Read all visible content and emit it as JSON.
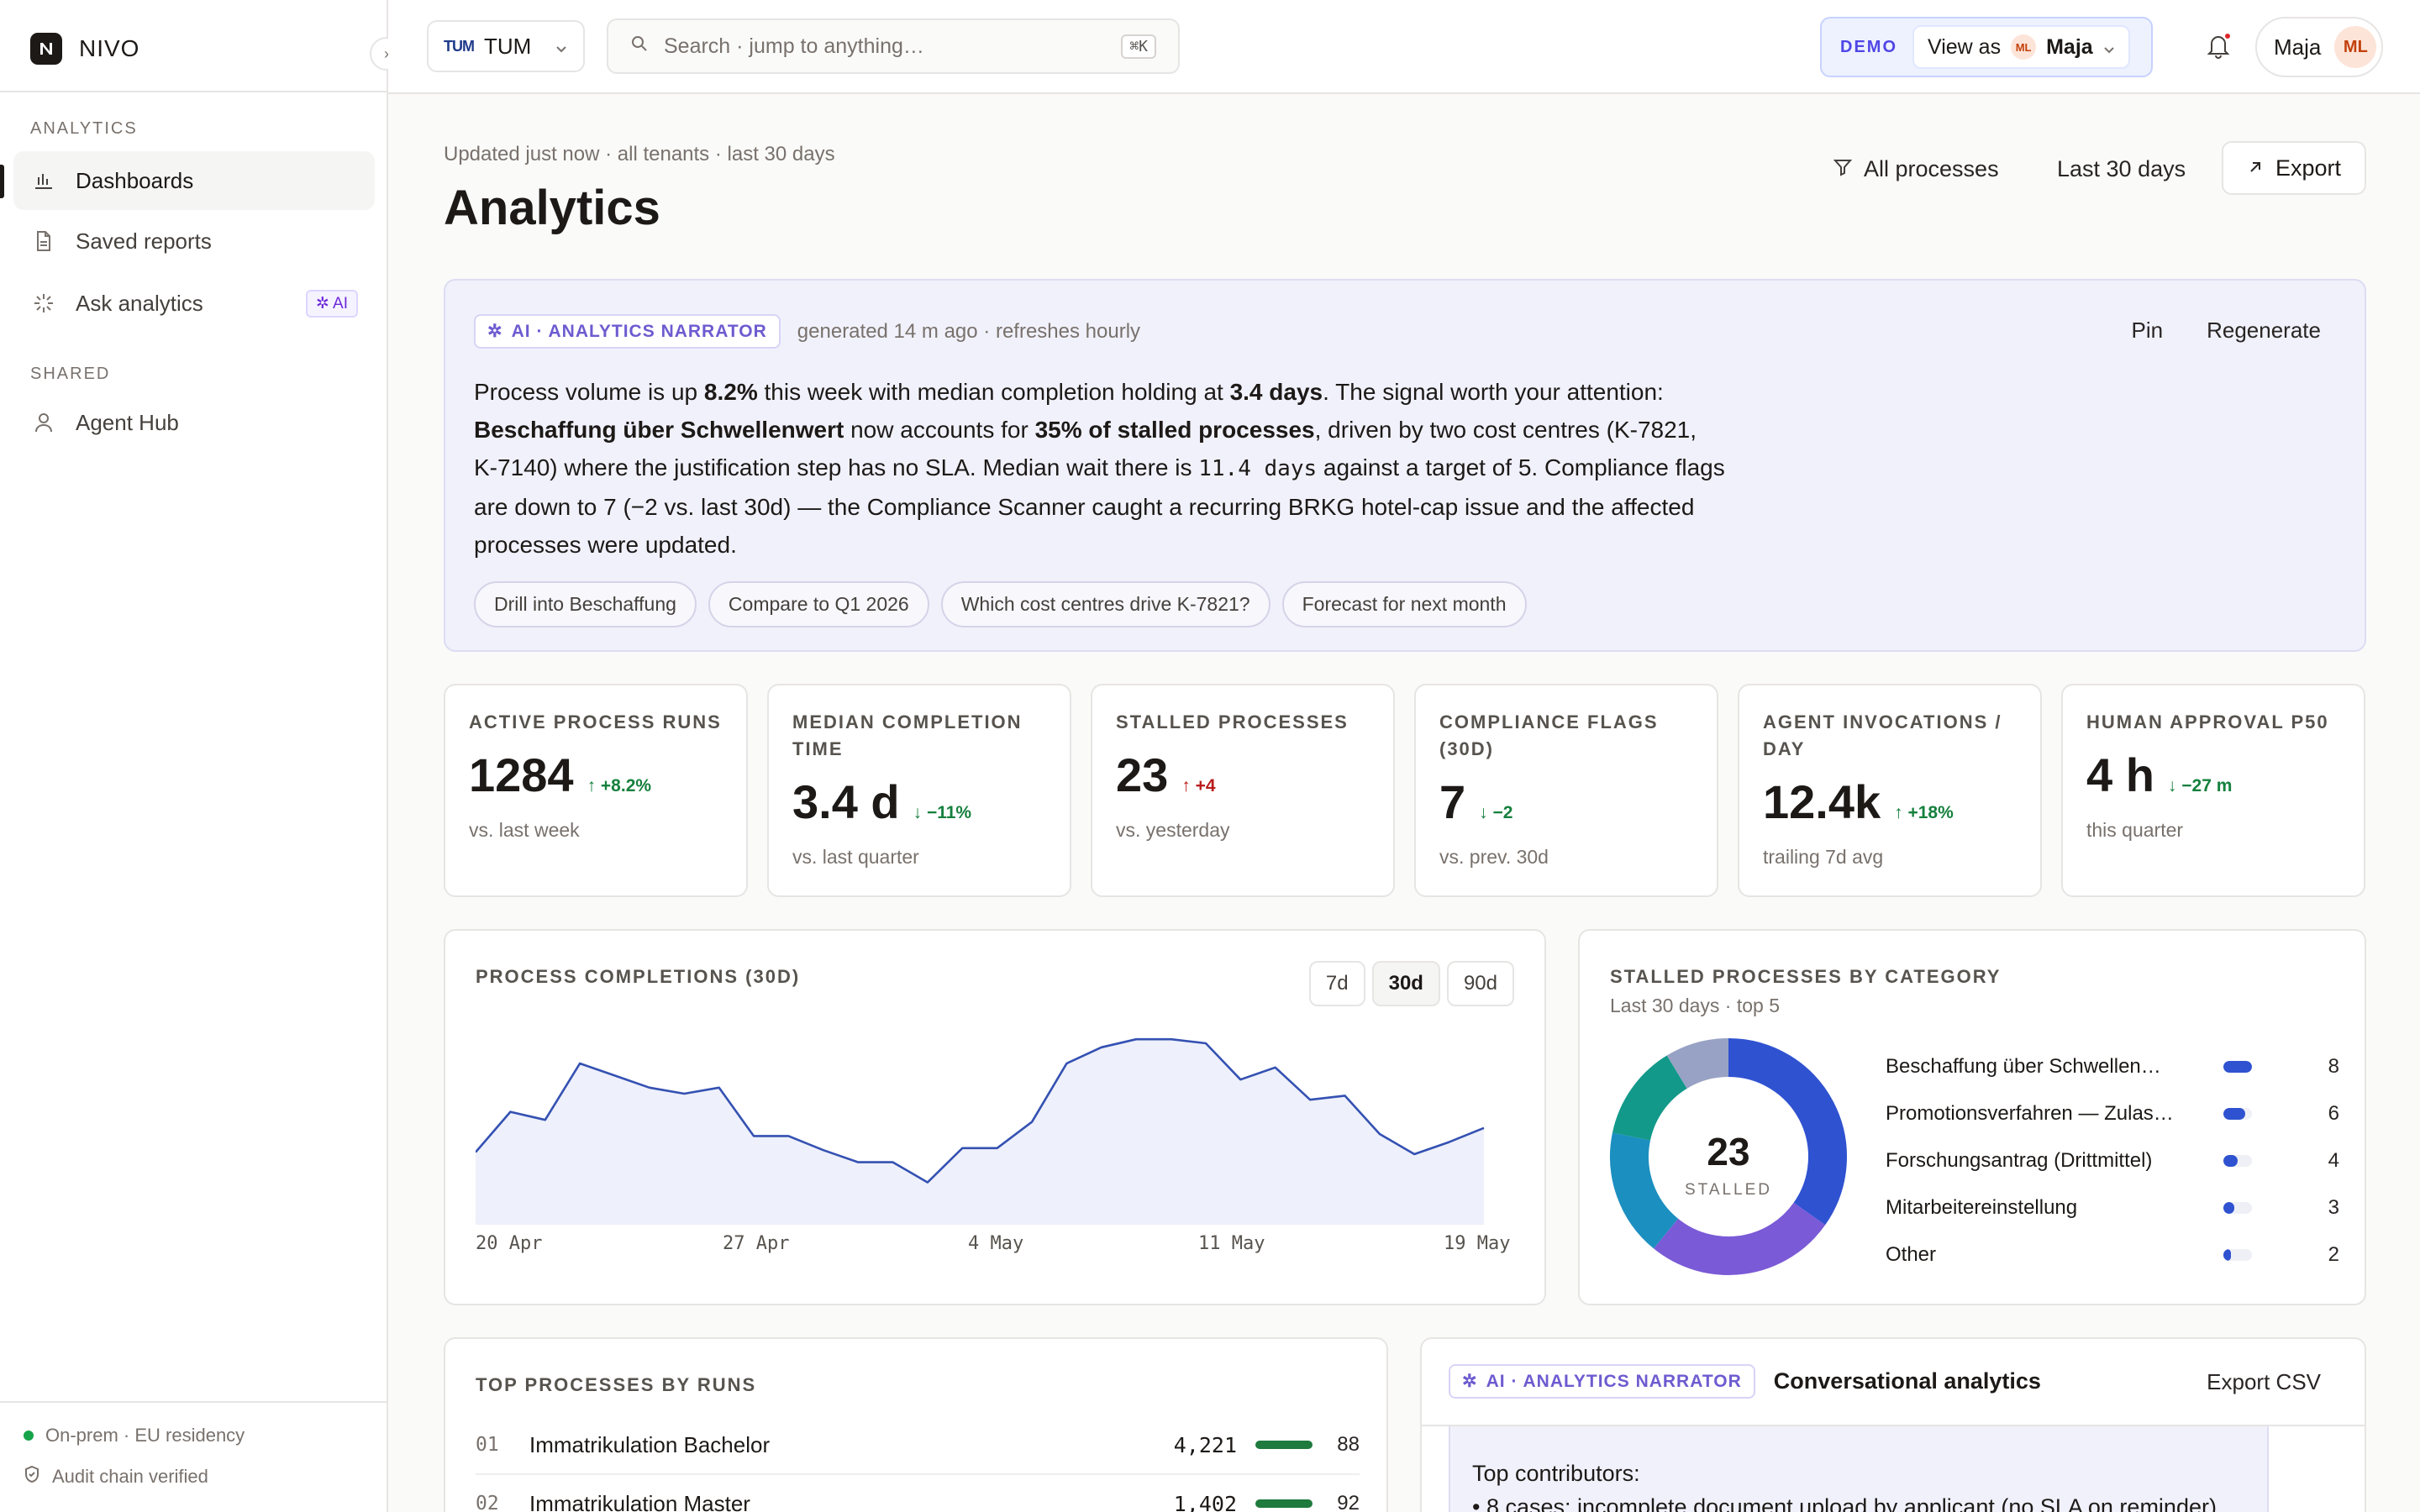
{
  "brand": {
    "name": "NIVO"
  },
  "sidebar": {
    "sections": [
      {
        "label": "ANALYTICS"
      },
      {
        "label": "SHARED"
      }
    ],
    "items": [
      {
        "label": "Dashboards",
        "icon": "bar-chart-icon"
      },
      {
        "label": "Saved reports",
        "icon": "document-icon"
      },
      {
        "label": "Ask analytics",
        "icon": "sparkle-icon",
        "badge": "AI"
      },
      {
        "label": "Agent Hub",
        "icon": "person-icon"
      }
    ],
    "footer": {
      "residency": "On-prem · EU residency",
      "audit": "Audit chain verified"
    }
  },
  "topbar": {
    "tenant": {
      "logo": "TUM",
      "name": "TUM"
    },
    "search": {
      "placeholder": "Search · jump to anything…",
      "shortcut": "⌘K"
    },
    "demo": {
      "label": "DEMO",
      "view_as": "View as",
      "avatar_initials": "ML",
      "user": "Maja"
    },
    "user": {
      "name": "Maja",
      "initials": "ML"
    }
  },
  "header": {
    "updated": "Updated just now · all tenants · last 30 days",
    "title": "Analytics",
    "filter_processes": "All processes",
    "filter_range": "Last 30 days",
    "export": "Export"
  },
  "narrator": {
    "tag": "AI · ANALYTICS NARRATOR",
    "meta": "generated 14 m ago · refreshes hourly",
    "pin": "Pin",
    "regenerate": "Regenerate",
    "text": {
      "s1": "Process volume is up ",
      "b1": "8.2%",
      "s2": " this week with median completion holding at ",
      "b2": "3.4 days",
      "s3": ". The signal worth your attention: ",
      "b3": "Beschaffung über Schwellenwert",
      "s4": " now accounts for ",
      "b4": "35% of stalled processes",
      "s5": ", driven by two cost centres (K-7821, K-7140) where the justification step has no SLA. Median wait there is ",
      "c1": "11.4 days",
      "s6": " against a target of 5. Compliance flags are down to 7 (−2 vs. last 30d) — the Compliance Scanner caught a recurring BRKG hotel-cap issue and the affected processes were updated."
    },
    "chips": [
      "Drill into Beschaffung",
      "Compare to Q1 2026",
      "Which cost centres drive K-7821?",
      "Forecast for next month"
    ]
  },
  "kpis": [
    {
      "label": "ACTIVE PROCESS RUNS",
      "value": "1284",
      "delta": "+8.2%",
      "direction": "up",
      "tone": "good",
      "sub": "vs. last week"
    },
    {
      "label": "MEDIAN COMPLETION TIME",
      "value": "3.4 d",
      "delta": "−11%",
      "direction": "down",
      "tone": "good",
      "sub": "vs. last quarter"
    },
    {
      "label": "STALLED PROCESSES",
      "value": "23",
      "delta": "+4",
      "direction": "up",
      "tone": "bad",
      "sub": "vs. yesterday"
    },
    {
      "label": "COMPLIANCE FLAGS (30D)",
      "value": "7",
      "delta": "−2",
      "direction": "down",
      "tone": "good",
      "sub": "vs. prev. 30d"
    },
    {
      "label": "AGENT INVOCATIONS / DAY",
      "value": "12.4k",
      "delta": "+18%",
      "direction": "up",
      "tone": "good",
      "sub": "trailing 7d avg"
    },
    {
      "label": "HUMAN APPROVAL P50",
      "value": "4 h",
      "delta": "−27 m",
      "direction": "down",
      "tone": "good",
      "sub": "this quarter"
    }
  ],
  "completions": {
    "title": "PROCESS COMPLETIONS (30D)",
    "ranges": [
      "7d",
      "30d",
      "90d"
    ],
    "active_range": "30d"
  },
  "stalled": {
    "title": "STALLED PROCESSES BY CATEGORY",
    "subtitle": "Last 30 days · top 5",
    "total": "23",
    "total_label": "STALLED"
  },
  "top_processes": {
    "title": "TOP PROCESSES BY RUNS",
    "rows": [
      {
        "rank": "01",
        "name": "Immatrikulation Bachelor",
        "runs": "4,221",
        "score": "88"
      },
      {
        "rank": "02",
        "name": "Immatrikulation Master",
        "runs": "1,402",
        "score": "92"
      }
    ]
  },
  "conversational": {
    "tag": "AI · ANALYTICS NARRATOR",
    "title": "Conversational analytics",
    "export": "Export CSV",
    "line1": "Top contributors:",
    "line2": "• 8 cases: incomplete document upload by applicant (no SLA on reminder)"
  },
  "chart_data": [
    {
      "type": "area",
      "title": "PROCESS COMPLETIONS (30D)",
      "x_ticks": [
        "20 Apr",
        "27 Apr",
        "4 May",
        "11 May",
        "19 May"
      ],
      "x": [
        "20 Apr",
        "21 Apr",
        "22 Apr",
        "23 Apr",
        "24 Apr",
        "25 Apr",
        "26 Apr",
        "27 Apr",
        "28 Apr",
        "29 Apr",
        "30 Apr",
        "1 May",
        "2 May",
        "3 May",
        "4 May",
        "5 May",
        "6 May",
        "7 May",
        "8 May",
        "9 May",
        "10 May",
        "11 May",
        "12 May",
        "13 May",
        "14 May",
        "15 May",
        "16 May",
        "17 May",
        "18 May",
        "19 May"
      ],
      "values": [
        36,
        56,
        52,
        80,
        74,
        68,
        65,
        68,
        44,
        44,
        37,
        31,
        31,
        21,
        38,
        38,
        51,
        80,
        88,
        92,
        92,
        90,
        72,
        78,
        62,
        64,
        45,
        35,
        41,
        48
      ],
      "ylim": [
        0,
        100
      ],
      "grid": false
    },
    {
      "type": "pie",
      "title": "STALLED PROCESSES BY CATEGORY",
      "subtitle": "Last 30 days · top 5",
      "total": 23,
      "slices": [
        {
          "label": "Beschaffung über Schwellen…",
          "value": 8,
          "color": "#2f52d0"
        },
        {
          "label": "Promotionsverfahren — Zulas…",
          "value": 6,
          "color": "#7a5ad6"
        },
        {
          "label": "Forschungsantrag (Drittmittel)",
          "value": 4,
          "color": "#1b8fc0"
        },
        {
          "label": "Mitarbeitereinstellung",
          "value": 3,
          "color": "#12998a"
        },
        {
          "label": "Other",
          "value": 2,
          "color": "#98a2c4"
        }
      ]
    }
  ]
}
